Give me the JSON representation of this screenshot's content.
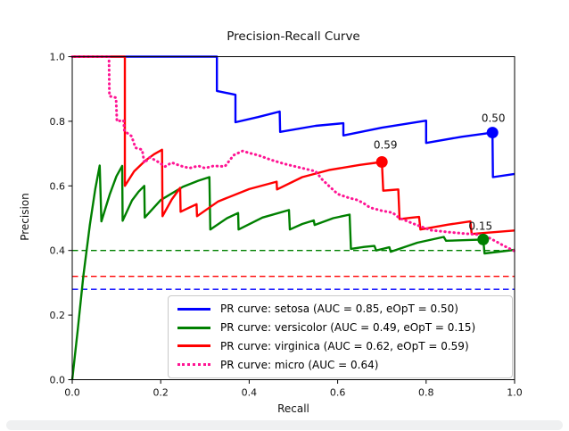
{
  "figure": {
    "background": "#ffffff"
  },
  "chart_data": {
    "type": "line",
    "title": "Precision-Recall Curve",
    "xlabel": "Recall",
    "ylabel": "Precision",
    "xlim": [
      0.0,
      1.0
    ],
    "ylim": [
      0.0,
      1.0
    ],
    "grid": false,
    "legend_position": "inside lower right",
    "xticks": [
      {
        "value": 0.0,
        "label": "0.0"
      },
      {
        "value": 0.2,
        "label": "0.2"
      },
      {
        "value": 0.4,
        "label": "0.4"
      },
      {
        "value": 0.6,
        "label": "0.6"
      },
      {
        "value": 0.8,
        "label": "0.8"
      },
      {
        "value": 1.0,
        "label": "1.0"
      }
    ],
    "yticks": [
      {
        "value": 0.0,
        "label": "0.0"
      },
      {
        "value": 0.2,
        "label": "0.2"
      },
      {
        "value": 0.4,
        "label": "0.4"
      },
      {
        "value": 0.6,
        "label": "0.6"
      },
      {
        "value": 0.8,
        "label": "0.8"
      },
      {
        "value": 1.0,
        "label": "1.0"
      }
    ],
    "series": [
      {
        "name": "setosa",
        "legend_label": "PR curve: setosa (AUC = 0.85, eOpT = 0.50)",
        "color": "#0000ff",
        "linestyle": "solid",
        "auc": 0.85,
        "eopt": 0.5,
        "chance_level": 0.28,
        "marker": {
          "recall": 0.95,
          "precision": 0.765,
          "label": "0.50",
          "dx": 1,
          "dy": -12
        },
        "points": [
          [
            0.0,
            1.0
          ],
          [
            0.327,
            1.0
          ],
          [
            0.327,
            0.894
          ],
          [
            0.369,
            0.882
          ],
          [
            0.369,
            0.797
          ],
          [
            0.42,
            0.813
          ],
          [
            0.469,
            0.83
          ],
          [
            0.47,
            0.767
          ],
          [
            0.55,
            0.786
          ],
          [
            0.613,
            0.794
          ],
          [
            0.613,
            0.756
          ],
          [
            0.7,
            0.78
          ],
          [
            0.8,
            0.802
          ],
          [
            0.8,
            0.733
          ],
          [
            0.88,
            0.752
          ],
          [
            0.95,
            0.765
          ],
          [
            0.951,
            0.627
          ],
          [
            1.0,
            0.637
          ]
        ]
      },
      {
        "name": "versicolor",
        "legend_label": "PR curve: versicolor (AUC = 0.49, eOpT = 0.15)",
        "color": "#008000",
        "linestyle": "solid",
        "auc": 0.49,
        "eopt": 0.15,
        "chance_level": 0.4,
        "marker": {
          "recall": 0.929,
          "precision": 0.434,
          "label": "0.15",
          "dx": -3,
          "dy": -11
        },
        "points": [
          [
            0.0,
            0.0
          ],
          [
            0.012,
            0.15
          ],
          [
            0.025,
            0.32
          ],
          [
            0.04,
            0.48
          ],
          [
            0.052,
            0.59
          ],
          [
            0.062,
            0.663
          ],
          [
            0.066,
            0.49
          ],
          [
            0.085,
            0.575
          ],
          [
            0.1,
            0.63
          ],
          [
            0.113,
            0.662
          ],
          [
            0.114,
            0.492
          ],
          [
            0.135,
            0.555
          ],
          [
            0.15,
            0.582
          ],
          [
            0.163,
            0.6
          ],
          [
            0.164,
            0.502
          ],
          [
            0.2,
            0.556
          ],
          [
            0.25,
            0.597
          ],
          [
            0.285,
            0.616
          ],
          [
            0.31,
            0.627
          ],
          [
            0.312,
            0.465
          ],
          [
            0.35,
            0.5
          ],
          [
            0.375,
            0.516
          ],
          [
            0.376,
            0.465
          ],
          [
            0.43,
            0.502
          ],
          [
            0.49,
            0.525
          ],
          [
            0.492,
            0.465
          ],
          [
            0.52,
            0.482
          ],
          [
            0.546,
            0.493
          ],
          [
            0.548,
            0.479
          ],
          [
            0.59,
            0.5
          ],
          [
            0.627,
            0.511
          ],
          [
            0.63,
            0.405
          ],
          [
            0.66,
            0.411
          ],
          [
            0.683,
            0.414
          ],
          [
            0.687,
            0.4
          ],
          [
            0.705,
            0.406
          ],
          [
            0.717,
            0.41
          ],
          [
            0.72,
            0.396
          ],
          [
            0.78,
            0.424
          ],
          [
            0.84,
            0.442
          ],
          [
            0.845,
            0.43
          ],
          [
            0.89,
            0.432
          ],
          [
            0.929,
            0.434
          ],
          [
            0.932,
            0.391
          ],
          [
            1.0,
            0.402
          ]
        ]
      },
      {
        "name": "virginica",
        "legend_label": "PR curve: virginica (AUC = 0.62, eOpT = 0.59)",
        "color": "#ff0000",
        "linestyle": "solid",
        "auc": 0.62,
        "eopt": 0.59,
        "chance_level": 0.32,
        "marker": {
          "recall": 0.7,
          "precision": 0.674,
          "label": "0.59",
          "dx": 4,
          "dy": -15
        },
        "points": [
          [
            0.0,
            1.0
          ],
          [
            0.119,
            1.0
          ],
          [
            0.119,
            0.6
          ],
          [
            0.14,
            0.645
          ],
          [
            0.165,
            0.678
          ],
          [
            0.185,
            0.698
          ],
          [
            0.203,
            0.712
          ],
          [
            0.204,
            0.506
          ],
          [
            0.225,
            0.558
          ],
          [
            0.244,
            0.594
          ],
          [
            0.245,
            0.52
          ],
          [
            0.265,
            0.533
          ],
          [
            0.281,
            0.543
          ],
          [
            0.282,
            0.506
          ],
          [
            0.33,
            0.552
          ],
          [
            0.4,
            0.59
          ],
          [
            0.462,
            0.613
          ],
          [
            0.463,
            0.589
          ],
          [
            0.52,
            0.627
          ],
          [
            0.58,
            0.649
          ],
          [
            0.65,
            0.665
          ],
          [
            0.7,
            0.674
          ],
          [
            0.703,
            0.585
          ],
          [
            0.72,
            0.587
          ],
          [
            0.737,
            0.589
          ],
          [
            0.74,
            0.497
          ],
          [
            0.765,
            0.501
          ],
          [
            0.784,
            0.504
          ],
          [
            0.787,
            0.465
          ],
          [
            0.85,
            0.48
          ],
          [
            0.9,
            0.49
          ],
          [
            0.903,
            0.451
          ],
          [
            1.0,
            0.462
          ]
        ]
      },
      {
        "name": "micro",
        "legend_label": "PR curve: micro (AUC = 0.64)",
        "color": "#ff1493",
        "linestyle": "dotted",
        "auc": 0.64,
        "chance_level": null,
        "marker": null,
        "points": [
          [
            0.0,
            1.0
          ],
          [
            0.083,
            1.0
          ],
          [
            0.084,
            0.878
          ],
          [
            0.099,
            0.873
          ],
          [
            0.101,
            0.8
          ],
          [
            0.116,
            0.803
          ],
          [
            0.118,
            0.77
          ],
          [
            0.134,
            0.754
          ],
          [
            0.143,
            0.718
          ],
          [
            0.158,
            0.712
          ],
          [
            0.163,
            0.671
          ],
          [
            0.175,
            0.688
          ],
          [
            0.19,
            0.678
          ],
          [
            0.21,
            0.66
          ],
          [
            0.225,
            0.672
          ],
          [
            0.245,
            0.662
          ],
          [
            0.265,
            0.655
          ],
          [
            0.285,
            0.662
          ],
          [
            0.3,
            0.655
          ],
          [
            0.32,
            0.662
          ],
          [
            0.345,
            0.66
          ],
          [
            0.365,
            0.695
          ],
          [
            0.385,
            0.708
          ],
          [
            0.4,
            0.702
          ],
          [
            0.42,
            0.695
          ],
          [
            0.45,
            0.68
          ],
          [
            0.48,
            0.668
          ],
          [
            0.52,
            0.655
          ],
          [
            0.55,
            0.645
          ],
          [
            0.565,
            0.62
          ],
          [
            0.58,
            0.6
          ],
          [
            0.6,
            0.575
          ],
          [
            0.625,
            0.563
          ],
          [
            0.645,
            0.556
          ],
          [
            0.66,
            0.545
          ],
          [
            0.673,
            0.533
          ],
          [
            0.7,
            0.523
          ],
          [
            0.724,
            0.517
          ],
          [
            0.74,
            0.5
          ],
          [
            0.755,
            0.492
          ],
          [
            0.775,
            0.481
          ],
          [
            0.81,
            0.463
          ],
          [
            0.85,
            0.457
          ],
          [
            0.89,
            0.452
          ],
          [
            0.93,
            0.448
          ],
          [
            0.955,
            0.43
          ],
          [
            0.975,
            0.415
          ],
          [
            1.0,
            0.398
          ]
        ]
      }
    ]
  }
}
